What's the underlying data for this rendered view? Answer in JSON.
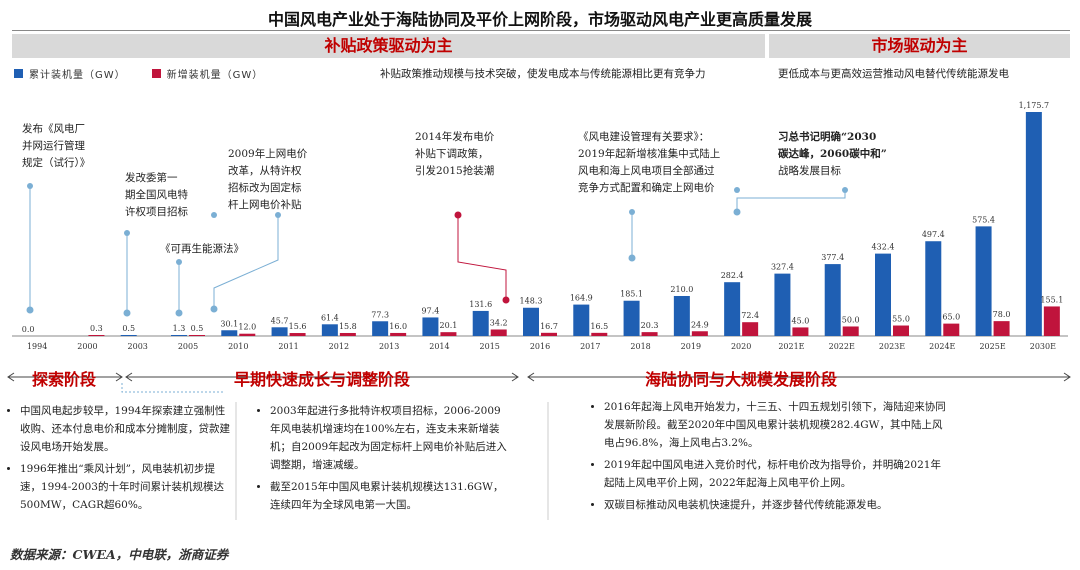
{
  "title": "中国风电产业处于海陆协同及平价上网阶段，市场驱动风电产业更高质量发展",
  "banners": {
    "left": "补贴政策驱动为主",
    "right": "市场驱动为主"
  },
  "subtitles": {
    "left": "补贴政策推动规模与技术突破，使发电成本与传统能源相比更有竞争力",
    "right": "更低成本与更高效运营推动风电替代传统能源发电"
  },
  "colors": {
    "cumulative": "#1f5fb3",
    "new": "#c0143c",
    "accent": "#c00000"
  },
  "chart_data": {
    "type": "bar",
    "categories": [
      "1994",
      "2000",
      "2003",
      "2005",
      "2010",
      "2011",
      "2012",
      "2013",
      "2014",
      "2015",
      "2016",
      "2017",
      "2018",
      "2019",
      "2020",
      "2021E",
      "2022E",
      "2023E",
      "2024E",
      "2025E",
      "2030E"
    ],
    "series": [
      {
        "name": "累计装机量（GW）",
        "values": [
          0.0,
          null,
          0.5,
          1.3,
          30.1,
          45.7,
          61.4,
          77.3,
          97.4,
          131.6,
          148.3,
          164.9,
          185.1,
          210.0,
          282.4,
          327.4,
          377.4,
          432.4,
          497.4,
          575.4,
          1175.7
        ],
        "labels": [
          "0.0",
          "",
          "0.5",
          "1.3",
          "30.1",
          "45.7",
          "61.4",
          "77.3",
          "97.4",
          "131.6",
          "148.3",
          "164.9",
          "185.1",
          "210.0",
          "282.4",
          "327.4",
          "377.4",
          "432.4",
          "497.4",
          "575.4",
          "1,175.7"
        ]
      },
      {
        "name": "新增装机量（GW）",
        "values": [
          null,
          0.3,
          null,
          0.5,
          12.0,
          15.6,
          15.8,
          16.0,
          20.1,
          34.2,
          16.7,
          16.5,
          20.3,
          24.9,
          72.4,
          45.0,
          50.0,
          55.0,
          65.0,
          78.0,
          155.1
        ],
        "labels": [
          "",
          "0.3",
          "",
          "0.5",
          "12.0",
          "15.6",
          "15.8",
          "16.0",
          "20.1",
          "34.2",
          "16.7",
          "16.5",
          "20.3",
          "24.9",
          "72.4",
          "45.0",
          "50.0",
          "55.0",
          "65.0",
          "78.0",
          "155.1"
        ]
      }
    ],
    "annotations": [
      {
        "category": "1994",
        "text": [
          "发布《风电厂",
          "并网运行管理",
          "规定（试行）》"
        ],
        "color": "#7bafd4"
      },
      {
        "category": "2003",
        "text": [
          "发改委第一",
          "期全国风电特",
          "许权项目招标"
        ],
        "color": "#7bafd4"
      },
      {
        "category": "2005",
        "text": [
          "《可再生能源法》"
        ],
        "color": "#7bafd4"
      },
      {
        "category": "2010",
        "text": [
          "2009年上网电价",
          "改革，从特许权",
          "招标改为固定标",
          "杆上网电价补贴"
        ],
        "color": "#7bafd4"
      },
      {
        "category": "2015",
        "text": [
          "2014年发布电价",
          "补贴下调政策，",
          "引发2015抢装潮"
        ],
        "color": "#c0143c"
      },
      {
        "category": "2018",
        "text": [
          "《风电建设管理有关要求》：",
          "2019年起新增核准集中式陆上",
          "风电和海上风电项目全部通过",
          "竞争方式配置和确定上网电价"
        ],
        "color": "#7bafd4"
      },
      {
        "category": "2021E",
        "text": [
          "习总书记明确“2030",
          "碳达峰，2060碳中和”",
          "战略发展目标"
        ],
        "color": "#7bafd4"
      }
    ]
  },
  "phases": {
    "explore": "探索阶段",
    "early": "早期快速成长与调整阶段",
    "sea": "海陆协同与大规模发展阶段"
  },
  "notes": {
    "explore": [
      "中国风电起步较早，1994年探索建立强制性收购、还本付息电价和成本分摊制度，贷款建设风电场开始发展。",
      "1996年推出“乘风计划”，风电装机初步提速，1994-2003的十年时间累计装机规模达500MW，CAGR超60%。"
    ],
    "early": [
      "2003年起进行多批特许权项目招标，2006-2009年风电装机增速均在100%左右，连支未来新增装机；自2009年起改为固定标杆上网电价补贴后进入调整期，增速减缓。",
      "截至2015年中国风电累计装机规模达131.6GW，连续四年为全球风电第一大国。"
    ],
    "sea": [
      "2016年起海上风电开始发力，十三五、十四五规划引领下，海陆迎来协同发展新阶段。截至2020年中国风电累计装机规模282.4GW，其中陆上风电占96.8%，海上风电占3.2%。",
      "2019年起中国风电进入竞价时代，标杆电价改为指导价，并明确2021年起陆上风电平价上网，2022年起海上风电平价上网。",
      "双碳目标推动风电装机快速提升，并逐步替代传统能源发电。"
    ]
  },
  "source": "数据来源：CWEA，中电联，浙商证券"
}
